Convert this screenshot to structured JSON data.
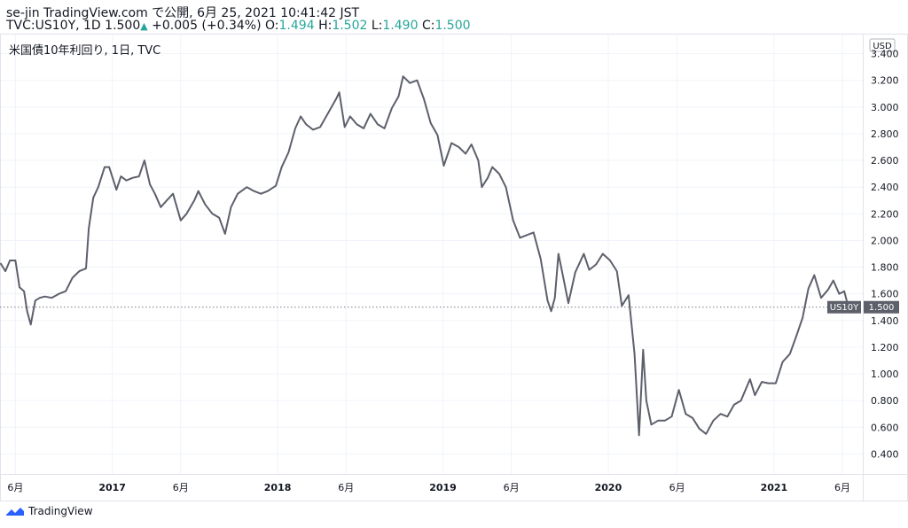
{
  "header": {
    "line1": "se-jin TradingView.com で公開, 6月 25, 2021 10:41:42 JST",
    "symbol": "TVC:US10Y, 1D 1.500",
    "arrow": "▲",
    "change": "+0.005 (+0.34%)",
    "o_label": "O:",
    "o_val": "1.494",
    "h_label": "H:",
    "h_val": "1.502",
    "l_label": "L:",
    "l_val": "1.490",
    "c_label": "C:",
    "c_val": "1.500"
  },
  "footer": {
    "brand": "TradingView"
  },
  "colors": {
    "line": "#5d606b",
    "accent": "#26a69a",
    "grid": "#f0f3fa",
    "badge": "#5d606b"
  },
  "chart_data": {
    "type": "line",
    "title": "米国債10年利回り, 1日, TVC",
    "currency": "USD",
    "y_ticks": [
      "3.400",
      "3.200",
      "3.000",
      "2.800",
      "2.600",
      "2.400",
      "2.200",
      "2.000",
      "1.800",
      "1.600",
      "1.400",
      "1.200",
      "1.000",
      "0.800",
      "0.600",
      "0.400"
    ],
    "x_ticks": [
      {
        "label": "6月",
        "x": "2016-06-01"
      },
      {
        "label": "2017",
        "x": "2017-01-01"
      },
      {
        "label": "6月",
        "x": "2017-06-01"
      },
      {
        "label": "2018",
        "x": "2018-01-01"
      },
      {
        "label": "6月",
        "x": "2018-06-01"
      },
      {
        "label": "2019",
        "x": "2019-01-01"
      },
      {
        "label": "6月",
        "x": "2019-06-01"
      },
      {
        "label": "2020",
        "x": "2020-01-01"
      },
      {
        "label": "6月",
        "x": "2020-06-01"
      },
      {
        "label": "2021",
        "x": "2021-01-01"
      },
      {
        "label": "6月",
        "x": "2021-06-01"
      }
    ],
    "last_value": 1.5,
    "last_label": "US10Y",
    "last_value_text": "1.500",
    "ylim": [
      0.25,
      3.55
    ],
    "xlim": [
      "2016-04-28",
      "2021-07-16"
    ],
    "series": [
      {
        "x": [
          "2016-04-29",
          "2016-05-10",
          "2016-05-20",
          "2016-06-01",
          "2016-06-10",
          "2016-06-20",
          "2016-06-27",
          "2016-07-05",
          "2016-07-15",
          "2016-07-25",
          "2016-08-05",
          "2016-08-20",
          "2016-09-05",
          "2016-09-20",
          "2016-10-05",
          "2016-10-20",
          "2016-11-04",
          "2016-11-10",
          "2016-11-20",
          "2016-12-01",
          "2016-12-15",
          "2016-12-25",
          "2017-01-10",
          "2017-01-20",
          "2017-02-01",
          "2017-02-15",
          "2017-03-01",
          "2017-03-13",
          "2017-03-25",
          "2017-04-05",
          "2017-04-18",
          "2017-05-01",
          "2017-05-15",
          "2017-06-01",
          "2017-06-14",
          "2017-07-01",
          "2017-07-10",
          "2017-07-25",
          "2017-08-10",
          "2017-08-25",
          "2017-09-07",
          "2017-09-20",
          "2017-10-05",
          "2017-10-25",
          "2017-11-10",
          "2017-11-25",
          "2017-12-10",
          "2017-12-28",
          "2018-01-10",
          "2018-01-25",
          "2018-02-09",
          "2018-02-21",
          "2018-03-05",
          "2018-03-20",
          "2018-04-05",
          "2018-04-25",
          "2018-05-10",
          "2018-05-17",
          "2018-05-29",
          "2018-06-10",
          "2018-06-25",
          "2018-07-10",
          "2018-07-25",
          "2018-08-10",
          "2018-08-25",
          "2018-09-10",
          "2018-09-25",
          "2018-10-05",
          "2018-10-20",
          "2018-11-05",
          "2018-11-20",
          "2018-12-05",
          "2018-12-20",
          "2019-01-03",
          "2019-01-20",
          "2019-02-05",
          "2019-02-20",
          "2019-03-05",
          "2019-03-20",
          "2019-03-28",
          "2019-04-10",
          "2019-04-20",
          "2019-05-05",
          "2019-05-20",
          "2019-06-05",
          "2019-06-20",
          "2019-07-05",
          "2019-07-20",
          "2019-08-05",
          "2019-08-20",
          "2019-08-28",
          "2019-09-05",
          "2019-09-13",
          "2019-09-25",
          "2019-10-05",
          "2019-10-20",
          "2019-11-08",
          "2019-11-20",
          "2019-12-05",
          "2019-12-20",
          "2020-01-05",
          "2020-01-20",
          "2020-01-31",
          "2020-02-15",
          "2020-02-28",
          "2020-03-09",
          "2020-03-18",
          "2020-03-25",
          "2020-04-05",
          "2020-04-20",
          "2020-05-05",
          "2020-05-20",
          "2020-06-05",
          "2020-06-20",
          "2020-07-05",
          "2020-07-20",
          "2020-08-04",
          "2020-08-20",
          "2020-09-05",
          "2020-09-20",
          "2020-10-05",
          "2020-10-20",
          "2020-11-09",
          "2020-11-20",
          "2020-12-05",
          "2020-12-20",
          "2021-01-05",
          "2021-01-20",
          "2021-02-05",
          "2021-02-20",
          "2021-03-05",
          "2021-03-18",
          "2021-03-31",
          "2021-04-15",
          "2021-04-30",
          "2021-05-12",
          "2021-05-25",
          "2021-06-05",
          "2021-06-15",
          "2021-06-25"
        ],
        "y": [
          1.83,
          1.77,
          1.85,
          1.85,
          1.65,
          1.62,
          1.47,
          1.37,
          1.55,
          1.57,
          1.58,
          1.57,
          1.6,
          1.62,
          1.72,
          1.77,
          1.79,
          2.09,
          2.32,
          2.4,
          2.55,
          2.55,
          2.38,
          2.48,
          2.45,
          2.47,
          2.48,
          2.6,
          2.42,
          2.35,
          2.25,
          2.3,
          2.35,
          2.15,
          2.2,
          2.3,
          2.37,
          2.27,
          2.2,
          2.17,
          2.05,
          2.25,
          2.35,
          2.4,
          2.37,
          2.35,
          2.37,
          2.41,
          2.55,
          2.66,
          2.84,
          2.93,
          2.87,
          2.83,
          2.85,
          2.97,
          3.06,
          3.11,
          2.85,
          2.93,
          2.87,
          2.84,
          2.95,
          2.87,
          2.84,
          2.99,
          3.08,
          3.23,
          3.18,
          3.2,
          3.06,
          2.88,
          2.79,
          2.56,
          2.73,
          2.7,
          2.65,
          2.72,
          2.6,
          2.4,
          2.47,
          2.55,
          2.5,
          2.4,
          2.15,
          2.02,
          2.04,
          2.06,
          1.86,
          1.55,
          1.47,
          1.57,
          1.9,
          1.7,
          1.53,
          1.76,
          1.9,
          1.78,
          1.82,
          1.9,
          1.85,
          1.77,
          1.51,
          1.59,
          1.15,
          0.54,
          1.18,
          0.8,
          0.62,
          0.65,
          0.65,
          0.68,
          0.88,
          0.7,
          0.67,
          0.59,
          0.55,
          0.65,
          0.7,
          0.68,
          0.77,
          0.8,
          0.96,
          0.84,
          0.94,
          0.93,
          0.93,
          1.09,
          1.15,
          1.29,
          1.42,
          1.64,
          1.74,
          1.57,
          1.63,
          1.7,
          1.6,
          1.62,
          1.49,
          1.5
        ]
      }
    ]
  }
}
